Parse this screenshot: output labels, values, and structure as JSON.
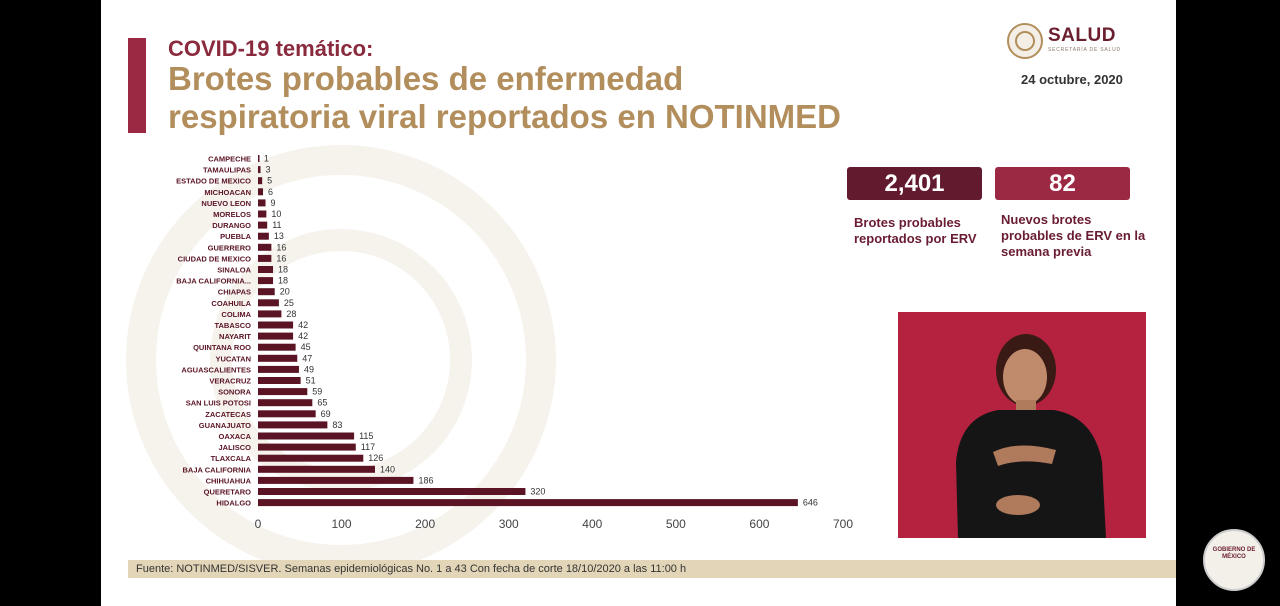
{
  "header": {
    "subtitle": "COVID-19 temático:",
    "title_line1": "Brotes probables de enfermedad",
    "title_line2": "respiratoria viral reportados en NOTINMED"
  },
  "brand": {
    "name": "SALUD",
    "sub": "SECRETARÍA DE SALUD",
    "date": "24 octubre, 2020"
  },
  "stats": [
    {
      "value": "2,401",
      "label": "Brotes probables reportados por ERV"
    },
    {
      "value": "82",
      "label": "Nuevos brotes probables de ERV en la semana previa"
    }
  ],
  "footer": {
    "source": "Fuente: NOTINMED/SISVER. Semanas epidemiológicas No. 1 a 43 Con fecha de corte 18/10/2020 a las 11:00 h"
  },
  "badge": {
    "text": "GOBIERNO DE MÉXICO"
  },
  "colors": {
    "bar": "#5a1424",
    "accent": "#9c2944",
    "gold": "#b38e5d"
  },
  "chart_data": {
    "type": "bar",
    "orientation": "horizontal",
    "categories": [
      "CAMPECHE",
      "TAMAULIPAS",
      "ESTADO DE MEXICO",
      "MICHOACAN",
      "NUEVO LEON",
      "MORELOS",
      "DURANGO",
      "PUEBLA",
      "GUERRERO",
      "CIUDAD DE MEXICO",
      "SINALOA",
      "BAJA CALIFORNIA...",
      "CHIAPAS",
      "COAHUILA",
      "COLIMA",
      "TABASCO",
      "NAYARIT",
      "QUINTANA ROO",
      "YUCATAN",
      "AGUASCALIENTES",
      "VERACRUZ",
      "SONORA",
      "SAN LUIS POTOSI",
      "ZACATECAS",
      "GUANAJUATO",
      "OAXACA",
      "JALISCO",
      "TLAXCALA",
      "BAJA CALIFORNIA",
      "CHIHUAHUA",
      "QUERETARO",
      "HIDALGO"
    ],
    "values": [
      1,
      3,
      5,
      6,
      9,
      10,
      11,
      13,
      16,
      16,
      18,
      18,
      20,
      25,
      28,
      42,
      42,
      45,
      47,
      49,
      51,
      59,
      65,
      69,
      83,
      115,
      117,
      126,
      140,
      186,
      320,
      646
    ],
    "xlim": [
      0,
      700
    ],
    "xticks": [
      0,
      100,
      200,
      300,
      400,
      500,
      600,
      700
    ],
    "grid": false,
    "legend": "none"
  }
}
